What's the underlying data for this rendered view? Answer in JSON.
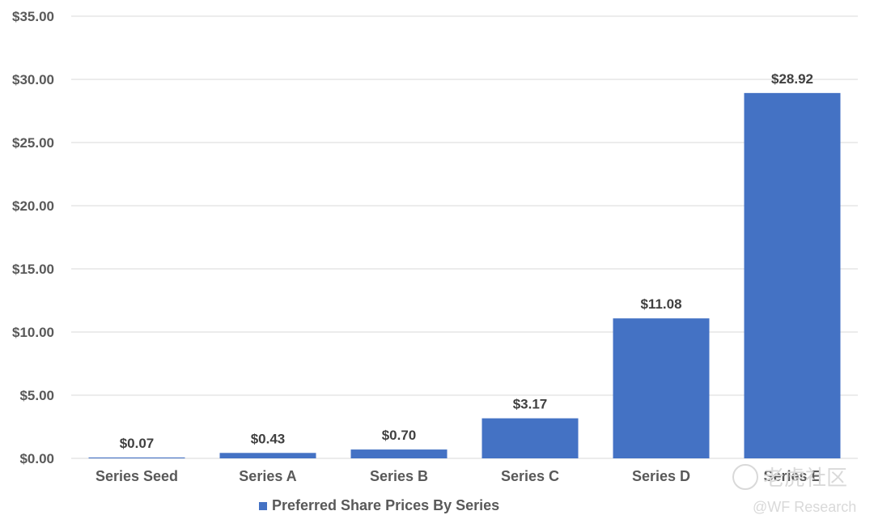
{
  "chart_data": {
    "type": "bar",
    "categories": [
      "Series Seed",
      "Series A",
      "Series B",
      "Series C",
      "Series D",
      "Series E"
    ],
    "series": [
      {
        "name": "Preferred Share Prices By Series",
        "values": [
          0.07,
          0.43,
          0.7,
          3.17,
          11.08,
          28.92
        ]
      }
    ],
    "data_labels": [
      "$0.07",
      "$0.43",
      "$0.70",
      "$3.17",
      "$11.08",
      "$28.92"
    ],
    "y_ticks": [
      "$0.00",
      "$5.00",
      "$10.00",
      "$15.00",
      "$20.00",
      "$25.00",
      "$30.00",
      "$35.00"
    ],
    "ylim": [
      0,
      35
    ],
    "grid": true,
    "legend_position": "bottom",
    "bar_color": "#4472c4",
    "grid_color": "#d9d9d9"
  },
  "watermark": {
    "logo_text": "老虎社区",
    "credit": "@WF Research"
  }
}
